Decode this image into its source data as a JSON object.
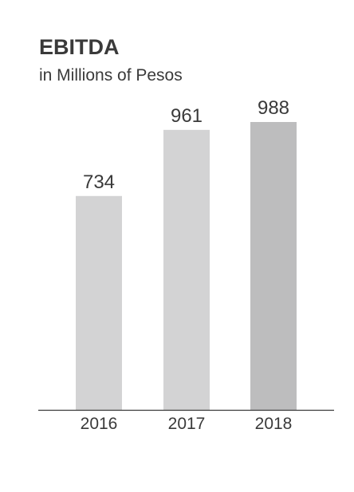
{
  "chart_data": {
    "type": "bar",
    "title": "EBITDA",
    "subtitle": "in Millions of Pesos",
    "categories": [
      "2016",
      "2017",
      "2018"
    ],
    "values": [
      734,
      961,
      988
    ],
    "bar_colors": [
      "#d3d3d4",
      "#d3d3d4",
      "#bdbdbe"
    ],
    "axis_color": "#3a3a3a",
    "text_color": "#3a3a3a",
    "ylim": [
      0,
      988
    ],
    "grid": false,
    "legend": "none"
  }
}
